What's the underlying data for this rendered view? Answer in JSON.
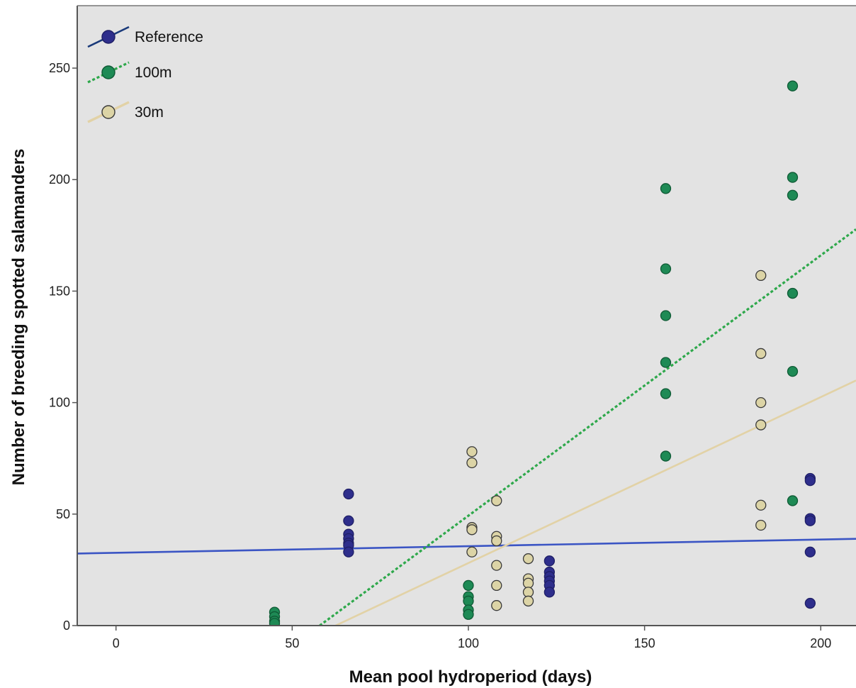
{
  "chart_data": {
    "type": "scatter",
    "xlabel": "Mean pool hydroperiod (days)",
    "ylabel": "Number of breeding spotted salamanders",
    "xlim": [
      -11,
      210
    ],
    "ylim": [
      0,
      278
    ],
    "xticks": [
      0,
      50,
      100,
      150,
      200
    ],
    "yticks": [
      0,
      50,
      100,
      150,
      200,
      250
    ],
    "grid": false,
    "background": "#e3e3e3",
    "legend_position": "top-left",
    "series": [
      {
        "name": "Reference",
        "color": "#2e2e8c",
        "edge_color": "#1f1f66",
        "line_color": "#3b55c4",
        "line_style": "solid",
        "points": [
          [
            66,
            59
          ],
          [
            66,
            47
          ],
          [
            66,
            41
          ],
          [
            66,
            39
          ],
          [
            66,
            37
          ],
          [
            66,
            36
          ],
          [
            66,
            33
          ],
          [
            123,
            29
          ],
          [
            123,
            24
          ],
          [
            123,
            22
          ],
          [
            123,
            20
          ],
          [
            123,
            18
          ],
          [
            123,
            15
          ],
          [
            197,
            66
          ],
          [
            197,
            65
          ],
          [
            197,
            48
          ],
          [
            197,
            47
          ],
          [
            197,
            33
          ],
          [
            197,
            10
          ]
        ],
        "fit": {
          "x": [
            -11,
            210
          ],
          "y": [
            32.3,
            38.9
          ]
        }
      },
      {
        "name": "100m",
        "color": "#1e8a55",
        "edge_color": "#0f5a35",
        "line_color": "#2ea84b",
        "line_style": "dotted",
        "points": [
          [
            45,
            6
          ],
          [
            45,
            4
          ],
          [
            45,
            2
          ],
          [
            45,
            1
          ],
          [
            100,
            18
          ],
          [
            100,
            13
          ],
          [
            100,
            11
          ],
          [
            100,
            7
          ],
          [
            100,
            5
          ],
          [
            156,
            196
          ],
          [
            156,
            160
          ],
          [
            156,
            139
          ],
          [
            156,
            118
          ],
          [
            156,
            104
          ],
          [
            156,
            76
          ],
          [
            192,
            242
          ],
          [
            192,
            201
          ],
          [
            192,
            193
          ],
          [
            192,
            149
          ],
          [
            192,
            114
          ],
          [
            192,
            56
          ]
        ],
        "fit": {
          "x": [
            57.8,
            210
          ],
          "y": [
            0,
            177.7
          ]
        }
      },
      {
        "name": "30m",
        "color": "#dcd4a6",
        "edge_color": "#3a3a3a",
        "line_color": "#e2d2a6",
        "line_style": "solid",
        "points": [
          [
            101,
            78
          ],
          [
            101,
            73
          ],
          [
            101,
            44
          ],
          [
            101,
            43
          ],
          [
            101,
            33
          ],
          [
            108,
            56
          ],
          [
            108,
            40
          ],
          [
            108,
            38
          ],
          [
            108,
            27
          ],
          [
            108,
            18
          ],
          [
            108,
            9
          ],
          [
            117,
            30
          ],
          [
            117,
            21
          ],
          [
            117,
            19
          ],
          [
            117,
            15
          ],
          [
            117,
            11
          ],
          [
            183,
            157
          ],
          [
            183,
            122
          ],
          [
            183,
            100
          ],
          [
            183,
            90
          ],
          [
            183,
            54
          ],
          [
            183,
            45
          ]
        ],
        "fit": {
          "x": [
            62.3,
            210
          ],
          "y": [
            0,
            109.9
          ]
        }
      }
    ]
  }
}
